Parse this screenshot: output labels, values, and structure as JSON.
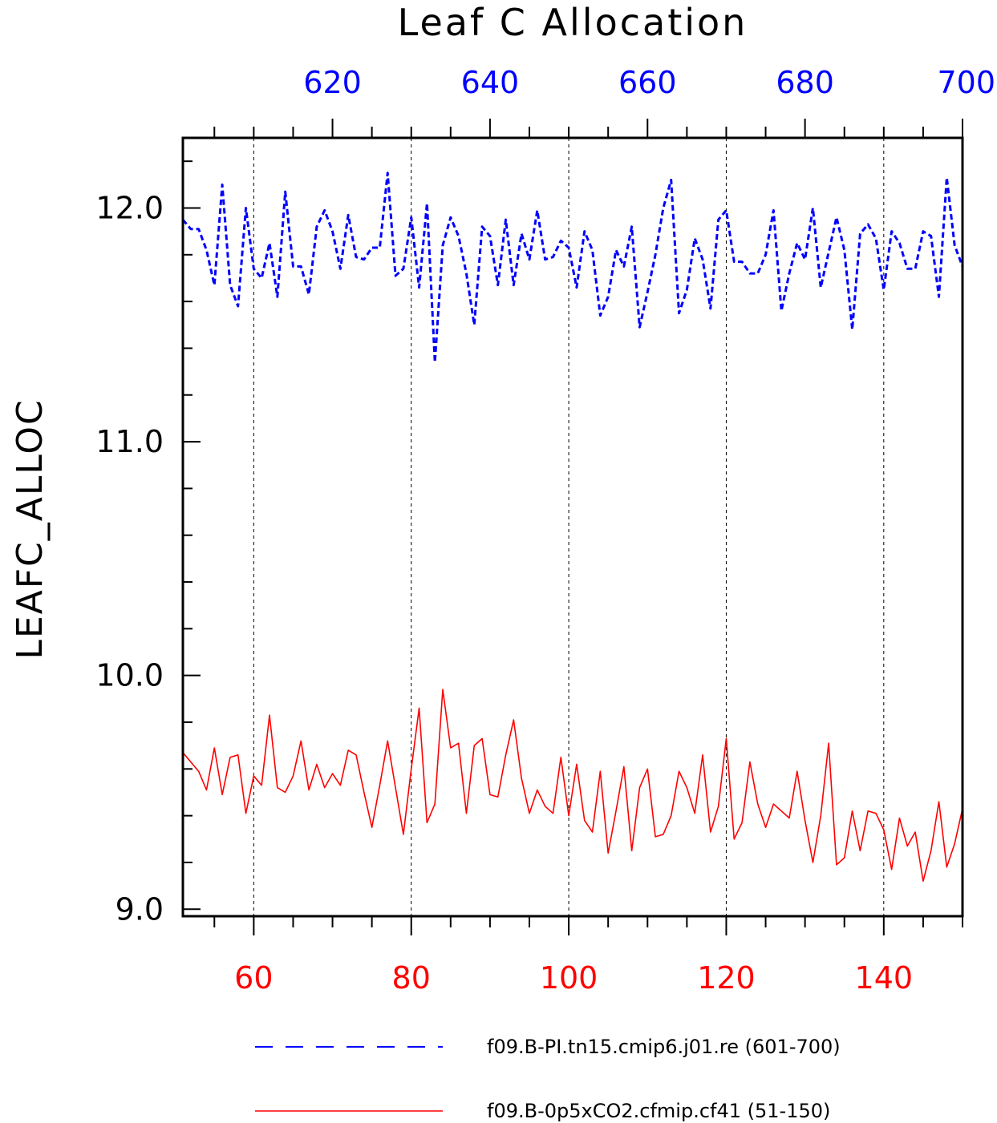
{
  "chart_data": {
    "type": "line",
    "title": "Leaf C Allocation",
    "ylabel": "LEAFC_ALLOC",
    "ylim": [
      8.97,
      12.3
    ],
    "yticks": [
      {
        "v": 9.0,
        "label": "9.0"
      },
      {
        "v": 10.0,
        "label": "10.0"
      },
      {
        "v": 11.0,
        "label": "11.0"
      },
      {
        "v": 12.0,
        "label": "12.0"
      }
    ],
    "y_minor_step": 0.2,
    "grid_x": "dashed-vertical",
    "bottom_axis": {
      "color": "#ff0000",
      "range": [
        51,
        150
      ],
      "ticks": [
        {
          "v": 60,
          "label": "60"
        },
        {
          "v": 80,
          "label": "80"
        },
        {
          "v": 100,
          "label": "100"
        },
        {
          "v": 120,
          "label": "120"
        },
        {
          "v": 140,
          "label": "140"
        }
      ],
      "minor_step": 5
    },
    "top_axis": {
      "color": "#0000ff",
      "range": [
        601,
        700
      ],
      "ticks": [
        {
          "v": 620,
          "label": "620"
        },
        {
          "v": 640,
          "label": "640"
        },
        {
          "v": 660,
          "label": "660"
        },
        {
          "v": 680,
          "label": "680"
        },
        {
          "v": 700,
          "label": "700"
        }
      ],
      "minor_step": 5
    },
    "series": [
      {
        "name": "f09.B-PI.tn15.cmip6.j01.re (601-700)",
        "color": "#0000ff",
        "style": "dashed",
        "axis": "top",
        "x_start": 601,
        "values": [
          11.95,
          11.91,
          11.91,
          11.82,
          11.67,
          12.1,
          11.67,
          11.58,
          12.0,
          11.74,
          11.7,
          11.85,
          11.62,
          12.07,
          11.75,
          11.75,
          11.63,
          11.92,
          11.99,
          11.9,
          11.74,
          11.97,
          11.79,
          11.78,
          11.83,
          11.83,
          12.15,
          11.71,
          11.74,
          11.96,
          11.66,
          12.02,
          11.34,
          11.84,
          11.96,
          11.88,
          11.72,
          11.5,
          11.92,
          11.88,
          11.67,
          11.95,
          11.67,
          11.89,
          11.78,
          11.99,
          11.78,
          11.79,
          11.86,
          11.83,
          11.66,
          11.9,
          11.82,
          11.54,
          11.62,
          11.82,
          11.75,
          11.92,
          11.49,
          11.64,
          11.8,
          12.0,
          12.12,
          11.55,
          11.65,
          11.87,
          11.78,
          11.57,
          11.95,
          11.99,
          11.77,
          11.77,
          11.72,
          11.72,
          11.8,
          11.99,
          11.56,
          11.72,
          11.85,
          11.78,
          12.0,
          11.66,
          11.81,
          11.96,
          11.82,
          11.48,
          11.89,
          11.93,
          11.87,
          11.65,
          11.9,
          11.85,
          11.74,
          11.74,
          11.9,
          11.88,
          11.62,
          12.13,
          11.84,
          11.75
        ]
      },
      {
        "name": "f09.B-0p5xCO2.cfmip.cf41 (51-150)",
        "color": "#ff0000",
        "style": "solid",
        "axis": "bottom",
        "x_start": 51,
        "values": [
          9.67,
          9.63,
          9.59,
          9.51,
          9.69,
          9.49,
          9.65,
          9.66,
          9.41,
          9.57,
          9.53,
          9.83,
          9.52,
          9.5,
          9.57,
          9.72,
          9.51,
          9.62,
          9.52,
          9.58,
          9.53,
          9.68,
          9.66,
          9.5,
          9.35,
          9.53,
          9.72,
          9.52,
          9.32,
          9.6,
          9.86,
          9.37,
          9.45,
          9.94,
          9.69,
          9.71,
          9.41,
          9.7,
          9.73,
          9.49,
          9.48,
          9.66,
          9.81,
          9.56,
          9.41,
          9.51,
          9.44,
          9.41,
          9.65,
          9.4,
          9.62,
          9.38,
          9.33,
          9.59,
          9.24,
          9.42,
          9.61,
          9.25,
          9.52,
          9.6,
          9.31,
          9.32,
          9.4,
          9.59,
          9.52,
          9.41,
          9.66,
          9.33,
          9.44,
          9.73,
          9.3,
          9.37,
          9.63,
          9.45,
          9.35,
          9.45,
          9.42,
          9.39,
          9.59,
          9.38,
          9.2,
          9.4,
          9.71,
          9.19,
          9.22,
          9.42,
          9.25,
          9.42,
          9.41,
          9.34,
          9.17,
          9.39,
          9.27,
          9.33,
          9.12,
          9.25,
          9.46,
          9.18,
          9.28,
          9.43
        ]
      }
    ]
  }
}
